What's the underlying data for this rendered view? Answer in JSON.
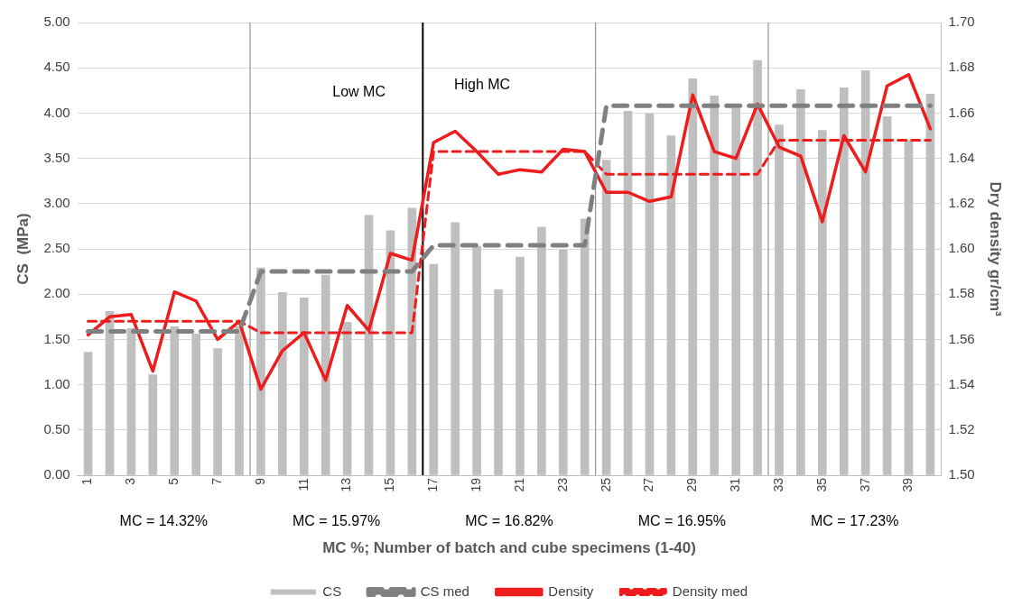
{
  "chart_data": {
    "type": "bar",
    "xlabel": "MC %; Number of batch and cube specimens (1-40)",
    "ylabel": "CS  (MPa)",
    "y2label": "Dry density gr/cm³",
    "x": [
      1,
      2,
      3,
      4,
      5,
      6,
      7,
      8,
      9,
      10,
      11,
      12,
      13,
      14,
      15,
      16,
      17,
      18,
      19,
      20,
      21,
      22,
      23,
      24,
      25,
      26,
      27,
      28,
      29,
      30,
      31,
      32,
      33,
      34,
      35,
      36,
      37,
      38,
      39,
      40
    ],
    "xlim": [
      0.5,
      40.5
    ],
    "xticks": [
      1,
      3,
      5,
      7,
      9,
      11,
      13,
      15,
      17,
      19,
      21,
      23,
      25,
      27,
      29,
      31,
      33,
      35,
      37,
      39
    ],
    "ylim": [
      0,
      5
    ],
    "yticks": [
      {
        "value": 0,
        "label": "0.00"
      },
      {
        "value": 0.5,
        "label": "0.50"
      },
      {
        "value": 1,
        "label": "1.00"
      },
      {
        "value": 1.5,
        "label": "1.50"
      },
      {
        "value": 2,
        "label": "2.00"
      },
      {
        "value": 2.5,
        "label": "2.50"
      },
      {
        "value": 3,
        "label": "3.00"
      },
      {
        "value": 3.5,
        "label": "3.50"
      },
      {
        "value": 4,
        "label": "4.00"
      },
      {
        "value": 4.5,
        "label": "4.50"
      },
      {
        "value": 5,
        "label": "5.00"
      }
    ],
    "y2lim": [
      1.5,
      1.7
    ],
    "y2ticks": [
      {
        "value": 1.5,
        "label": "1.50"
      },
      {
        "value": 1.52,
        "label": "1.52"
      },
      {
        "value": 1.54,
        "label": "1.54"
      },
      {
        "value": 1.56,
        "label": "1.56"
      },
      {
        "value": 1.58,
        "label": "1.58"
      },
      {
        "value": 1.6,
        "label": "1.60"
      },
      {
        "value": 1.62,
        "label": "1.62"
      },
      {
        "value": 1.64,
        "label": "1.64"
      },
      {
        "value": 1.66,
        "label": "1.66"
      },
      {
        "value": 1.68,
        "label": "1.68"
      },
      {
        "value": 1.7,
        "label": "1.70"
      }
    ],
    "grid": "y",
    "legend": "bottom",
    "series": [
      {
        "name": "CS",
        "color": "#bfbfbf",
        "values": [
          1.36,
          1.81,
          1.62,
          1.11,
          1.64,
          1.56,
          1.4,
          1.64,
          2.29,
          2.02,
          1.96,
          2.21,
          1.69,
          2.87,
          2.7,
          2.95,
          2.33,
          2.79,
          2.53,
          2.05,
          2.41,
          2.74,
          2.49,
          2.83,
          3.48,
          4.02,
          3.99,
          3.75,
          4.38,
          4.19,
          4.05,
          4.58,
          3.87,
          4.26,
          3.81,
          4.28,
          4.47,
          3.96,
          3.7,
          4.21
        ]
      },
      {
        "name": "CS med",
        "type": "line",
        "line_style": "dashed",
        "color": "#808080",
        "values": [
          1.59,
          1.59,
          1.59,
          1.59,
          1.59,
          1.59,
          1.59,
          1.59,
          2.25,
          2.25,
          2.25,
          2.25,
          2.25,
          2.25,
          2.25,
          2.25,
          2.54,
          2.54,
          2.54,
          2.54,
          2.54,
          2.54,
          2.54,
          2.54,
          4.08,
          4.08,
          4.08,
          4.08,
          4.08,
          4.08,
          4.08,
          4.08,
          4.08,
          4.08,
          4.08,
          4.08,
          4.08,
          4.08,
          4.08,
          4.08
        ]
      },
      {
        "name": "Density",
        "type": "line",
        "axis": "y2",
        "line_style": "solid",
        "color": "#ee1c1c",
        "values": [
          1.562,
          1.57,
          1.571,
          1.546,
          1.581,
          1.577,
          1.56,
          1.568,
          1.538,
          1.555,
          1.563,
          1.542,
          1.575,
          1.564,
          1.598,
          1.595,
          1.647,
          1.652,
          1.643,
          1.633,
          1.635,
          1.634,
          1.644,
          1.643,
          1.625,
          1.625,
          1.621,
          1.623,
          1.668,
          1.643,
          1.64,
          1.664,
          1.645,
          1.641,
          1.612,
          1.65,
          1.634,
          1.672,
          1.677,
          1.653
        ]
      },
      {
        "name": "Density med",
        "type": "line",
        "axis": "y2",
        "line_style": "dashed",
        "color": "#ee1c1c",
        "values": [
          1.568,
          1.568,
          1.568,
          1.568,
          1.568,
          1.568,
          1.568,
          1.568,
          1.563,
          1.563,
          1.563,
          1.563,
          1.563,
          1.563,
          1.563,
          1.563,
          1.643,
          1.643,
          1.643,
          1.643,
          1.643,
          1.643,
          1.643,
          1.643,
          1.633,
          1.633,
          1.633,
          1.633,
          1.633,
          1.633,
          1.633,
          1.633,
          1.648,
          1.648,
          1.648,
          1.648,
          1.648,
          1.648,
          1.648,
          1.648
        ]
      }
    ],
    "ref_lines": [
      {
        "axis": "x",
        "value": 8.5,
        "color": "#808080"
      },
      {
        "axis": "x",
        "value": 16.5,
        "color": "#000000"
      },
      {
        "axis": "x",
        "value": 24.5,
        "color": "#808080"
      },
      {
        "axis": "x",
        "value": 32.5,
        "color": "#808080"
      }
    ],
    "annotations": [
      "MC = 14.32%",
      "MC = 15.97%",
      "MC = 16.82%",
      "MC = 16.95%",
      "MC = 17.23%",
      "Low MC",
      "High MC"
    ]
  }
}
